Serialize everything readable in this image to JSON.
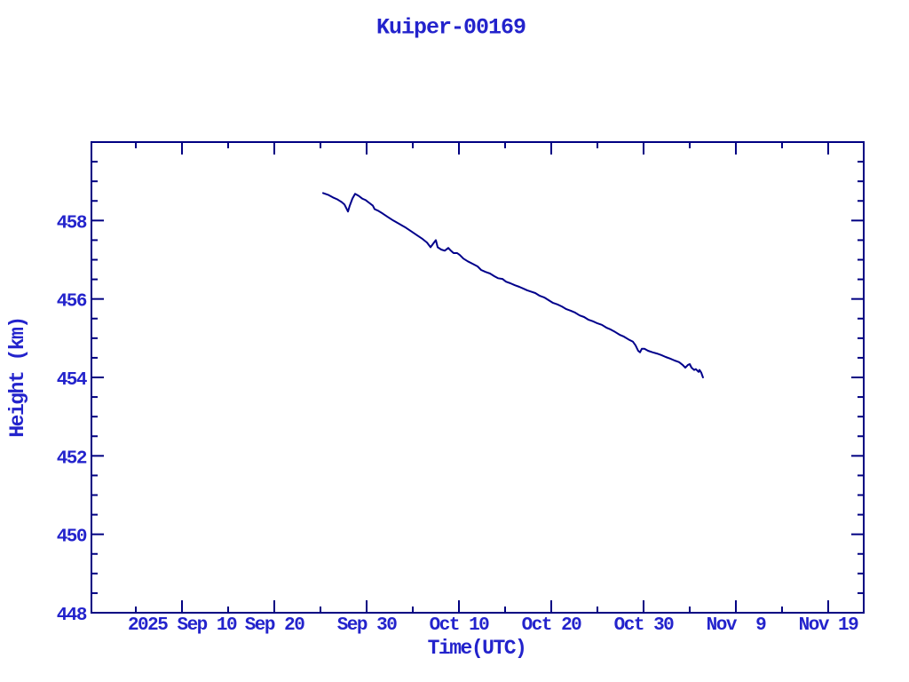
{
  "window": {
    "background_color": "#ffffff"
  },
  "colors": {
    "frame": "#000082",
    "line": "#00008b",
    "text": "#2323cc",
    "background": "#ffffff"
  },
  "chart_data": {
    "type": "line",
    "title": "Kuiper-00169",
    "xlabel": "Time(UTC)",
    "ylabel": "Height (km)",
    "legend": "none",
    "grid": false,
    "x_range": [
      -9.81,
      73.85
    ],
    "y_range": [
      448,
      460
    ],
    "x_major_ticks": [
      {
        "value": 0,
        "label": "2025 Sep 10"
      },
      {
        "value": 10,
        "label": "Sep 20"
      },
      {
        "value": 20,
        "label": "Sep 30"
      },
      {
        "value": 30,
        "label": "Oct 10"
      },
      {
        "value": 40,
        "label": "Oct 20"
      },
      {
        "value": 50,
        "label": "Oct 30"
      },
      {
        "value": 60,
        "label": "Nov  9"
      },
      {
        "value": 70,
        "label": "Nov 19"
      }
    ],
    "x_minor_ticks": [
      -5,
      5,
      15,
      25,
      35,
      45,
      55,
      65
    ],
    "y_major_ticks": [
      {
        "value": 448,
        "label": "448"
      },
      {
        "value": 450,
        "label": "450"
      },
      {
        "value": 452,
        "label": "452"
      },
      {
        "value": 454,
        "label": "454"
      },
      {
        "value": 456,
        "label": "456"
      },
      {
        "value": 458,
        "label": "458"
      }
    ],
    "y_minor_ticks": [
      448.5,
      449,
      449.5,
      450.5,
      451,
      451.5,
      452.5,
      453,
      453.5,
      454.5,
      455,
      455.5,
      456.5,
      457,
      457.5,
      458.5,
      459,
      459.5
    ],
    "x_units_note": "days relative to 2025 Sep 10 tick",
    "series": [
      {
        "name": "height",
        "color": "#00008b",
        "points": [
          [
            15.29,
            458.7
          ],
          [
            15.87,
            458.65
          ],
          [
            16.35,
            458.59
          ],
          [
            16.83,
            458.54
          ],
          [
            17.31,
            458.47
          ],
          [
            17.6,
            458.41
          ],
          [
            17.79,
            458.32
          ],
          [
            17.98,
            458.23
          ],
          [
            18.17,
            458.38
          ],
          [
            18.46,
            458.56
          ],
          [
            18.75,
            458.68
          ],
          [
            19.13,
            458.63
          ],
          [
            19.52,
            458.56
          ],
          [
            19.9,
            458.52
          ],
          [
            20.29,
            458.45
          ],
          [
            20.67,
            458.38
          ],
          [
            20.87,
            458.29
          ],
          [
            21.25,
            458.25
          ],
          [
            21.73,
            458.18
          ],
          [
            22.31,
            458.09
          ],
          [
            22.88,
            458.0
          ],
          [
            23.56,
            457.91
          ],
          [
            24.23,
            457.82
          ],
          [
            24.81,
            457.73
          ],
          [
            25.48,
            457.62
          ],
          [
            26.06,
            457.53
          ],
          [
            26.54,
            457.44
          ],
          [
            26.92,
            457.32
          ],
          [
            27.21,
            457.41
          ],
          [
            27.5,
            457.5
          ],
          [
            27.69,
            457.32
          ],
          [
            28.08,
            457.26
          ],
          [
            28.46,
            457.23
          ],
          [
            28.85,
            457.3
          ],
          [
            29.13,
            457.23
          ],
          [
            29.42,
            457.17
          ],
          [
            29.81,
            457.17
          ],
          [
            30.1,
            457.12
          ],
          [
            30.48,
            457.03
          ],
          [
            30.96,
            456.96
          ],
          [
            31.54,
            456.89
          ],
          [
            32.02,
            456.83
          ],
          [
            32.4,
            456.74
          ],
          [
            32.88,
            456.69
          ],
          [
            33.37,
            456.65
          ],
          [
            33.85,
            456.58
          ],
          [
            34.23,
            456.53
          ],
          [
            34.71,
            456.51
          ],
          [
            35.1,
            456.44
          ],
          [
            35.58,
            456.4
          ],
          [
            36.06,
            456.35
          ],
          [
            36.54,
            456.31
          ],
          [
            37.02,
            456.26
          ],
          [
            37.4,
            456.22
          ],
          [
            37.79,
            456.19
          ],
          [
            38.27,
            456.15
          ],
          [
            38.75,
            456.08
          ],
          [
            39.23,
            456.04
          ],
          [
            39.71,
            455.97
          ],
          [
            40.19,
            455.9
          ],
          [
            40.67,
            455.86
          ],
          [
            41.15,
            455.81
          ],
          [
            41.63,
            455.74
          ],
          [
            42.12,
            455.7
          ],
          [
            42.6,
            455.65
          ],
          [
            43.08,
            455.58
          ],
          [
            43.56,
            455.54
          ],
          [
            44.04,
            455.47
          ],
          [
            44.52,
            455.43
          ],
          [
            45.0,
            455.38
          ],
          [
            45.48,
            455.34
          ],
          [
            45.96,
            455.27
          ],
          [
            46.44,
            455.22
          ],
          [
            46.92,
            455.16
          ],
          [
            47.4,
            455.09
          ],
          [
            47.88,
            455.04
          ],
          [
            48.37,
            454.97
          ],
          [
            48.85,
            454.91
          ],
          [
            49.13,
            454.82
          ],
          [
            49.42,
            454.68
          ],
          [
            49.62,
            454.64
          ],
          [
            49.81,
            454.73
          ],
          [
            50.1,
            454.73
          ],
          [
            50.48,
            454.68
          ],
          [
            50.96,
            454.64
          ],
          [
            51.44,
            454.61
          ],
          [
            51.92,
            454.57
          ],
          [
            52.4,
            454.52
          ],
          [
            52.88,
            454.48
          ],
          [
            53.37,
            454.43
          ],
          [
            53.85,
            454.39
          ],
          [
            54.23,
            454.32
          ],
          [
            54.52,
            454.25
          ],
          [
            54.81,
            454.32
          ],
          [
            55.0,
            454.34
          ],
          [
            55.19,
            454.25
          ],
          [
            55.48,
            454.19
          ],
          [
            55.67,
            454.21
          ],
          [
            55.96,
            454.14
          ],
          [
            56.06,
            454.19
          ],
          [
            56.25,
            454.12
          ],
          [
            56.44,
            454.0
          ]
        ]
      }
    ]
  }
}
